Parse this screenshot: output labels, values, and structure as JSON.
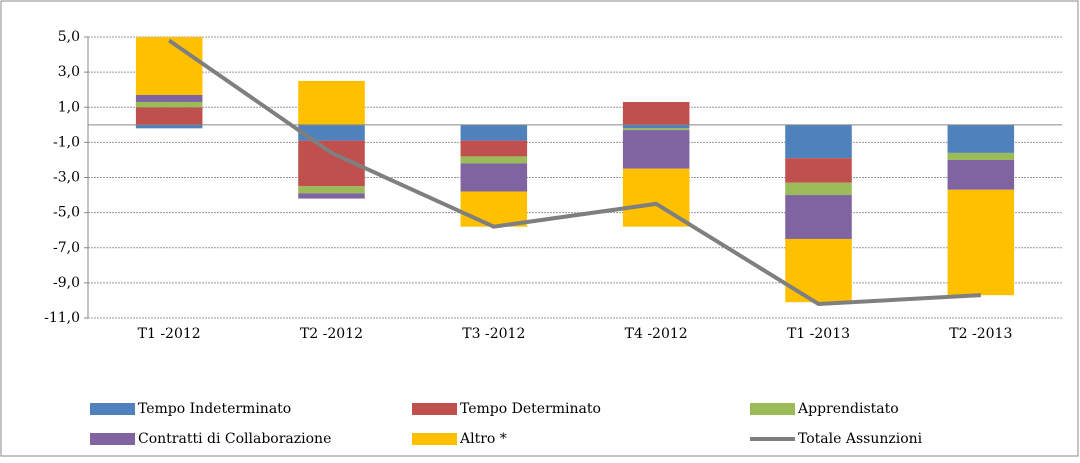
{
  "chart_data": {
    "type": "stacked-bar-line",
    "categories": [
      "T1 -2012",
      "T2 -2012",
      "T3 -2012",
      "T4 -2012",
      "T1 -2013",
      "T2 -2013"
    ],
    "series": [
      {
        "name": "Tempo Indeterminato",
        "color": "#4f81bd",
        "values": [
          -0.2,
          -0.9,
          -0.9,
          -0.2,
          -1.9,
          -1.6
        ]
      },
      {
        "name": "Tempo Determinato",
        "color": "#c0504d",
        "values": [
          1.0,
          -2.6,
          -0.9,
          1.3,
          -1.4,
          0
        ]
      },
      {
        "name": "Apprendistato",
        "color": "#9bbb59",
        "values": [
          0.3,
          -0.4,
          -0.4,
          -0.1,
          -0.7,
          -0.4
        ]
      },
      {
        "name": "Contratti di Collaborazione",
        "color": "#8064a2",
        "values": [
          0.4,
          -0.3,
          -1.6,
          -2.2,
          -2.5,
          -1.7
        ]
      },
      {
        "name": "Altro *",
        "color": "#ffc000",
        "values": [
          3.3,
          2.5,
          -2.0,
          -3.3,
          -3.6,
          -6.0
        ]
      },
      {
        "name": "Totale Assunzioni",
        "color": "#7f7f7f",
        "kind": "line",
        "values": [
          4.8,
          -1.6,
          -5.8,
          -4.5,
          -10.2,
          -9.7
        ]
      }
    ],
    "ylim": [
      -11,
      5
    ],
    "yticks": [
      {
        "value": -11,
        "label": "-11,0"
      },
      {
        "value": -9,
        "label": "-9,0"
      },
      {
        "value": -7,
        "label": "-7,0"
      },
      {
        "value": -5,
        "label": "-5,0"
      },
      {
        "value": -3,
        "label": "-3,0"
      },
      {
        "value": -1,
        "label": "-1,0"
      },
      {
        "value": 1,
        "label": "1,0"
      },
      {
        "value": 3,
        "label": "3,0"
      },
      {
        "value": 5,
        "label": "5,0"
      }
    ],
    "grid": true
  }
}
